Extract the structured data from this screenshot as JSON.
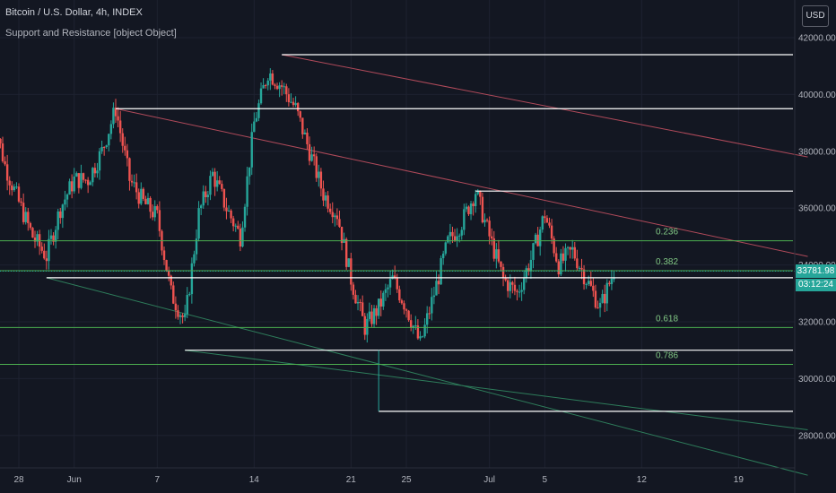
{
  "header": {
    "title": "Bitcoin / U.S. Dollar, 4h, INDEX",
    "indicator": "Support and Resistance [object Object]",
    "currency_button": "USD"
  },
  "last_price": {
    "price": "33781.98",
    "countdown": "03:12:24",
    "color": "#26a69a"
  },
  "colors": {
    "background": "#131722",
    "up": "#26a69a",
    "down": "#ef5350",
    "fib": "#4caf50",
    "support": "#ffffff",
    "trend_down": "#b04a5a",
    "trend_up": "#2e7d5b",
    "grid": "#1e2230",
    "text": "#b2b5be"
  },
  "chart_data": {
    "type": "candlestick",
    "title": "Bitcoin / U.S. Dollar, 4h, INDEX",
    "x_axis": {
      "ticks": [
        "28",
        "Jun",
        "7",
        "14",
        "21",
        "25",
        "Jul",
        "5",
        "12",
        "19"
      ]
    },
    "y_axis": {
      "ticks": [
        "42000.00",
        "40000.00",
        "38000.00",
        "36000.00",
        "34000.00",
        "32000.00",
        "30000.00",
        "28000.00"
      ],
      "range": [
        27300,
        42600
      ]
    },
    "close_path": [
      [
        "May 26",
        39500
      ],
      [
        "May 27",
        37500
      ],
      [
        "May 28",
        36200
      ],
      [
        "May 29",
        35000
      ],
      [
        "May 30",
        34300
      ],
      [
        "May 31",
        36000
      ],
      [
        "Jun 1",
        37000
      ],
      [
        "Jun 2",
        37000
      ],
      [
        "Jun 3",
        38000
      ],
      [
        "Jun 4",
        39500
      ],
      [
        "Jun 5",
        37000
      ],
      [
        "Jun 6",
        36200
      ],
      [
        "Jun 7",
        35700
      ],
      [
        "Jun 8",
        33000
      ],
      [
        "Jun 9",
        32000
      ],
      [
        "Jun 10",
        35800
      ],
      [
        "Jun 11",
        37200
      ],
      [
        "Jun 12",
        36000
      ],
      [
        "Jun 13",
        35000
      ],
      [
        "Jun 14",
        39000
      ],
      [
        "Jun 15",
        40800
      ],
      [
        "Jun 16",
        40300
      ],
      [
        "Jun 17",
        39500
      ],
      [
        "Jun 18",
        38000
      ],
      [
        "Jun 19",
        36500
      ],
      [
        "Jun 20",
        35800
      ],
      [
        "Jun 21",
        33500
      ],
      [
        "Jun 22",
        31800
      ],
      [
        "Jun 23",
        32500
      ],
      [
        "Jun 24",
        33500
      ],
      [
        "Jun 25",
        32500
      ],
      [
        "Jun 26",
        31200
      ],
      [
        "Jun 27",
        33000
      ],
      [
        "Jun 28",
        34800
      ],
      [
        "Jun 29",
        35500
      ],
      [
        "Jun 30",
        36600
      ],
      [
        "Jul 1",
        35000
      ],
      [
        "Jul 2",
        33500
      ],
      [
        "Jul 3",
        33000
      ],
      [
        "Jul 4",
        34200
      ],
      [
        "Jul 5",
        35800
      ],
      [
        "Jul 6",
        34000
      ],
      [
        "Jul 7",
        34500
      ],
      [
        "Jul 8",
        33500
      ],
      [
        "Jul 9",
        32500
      ],
      [
        "Jul 10",
        33781.98
      ]
    ],
    "horizontal_levels": [
      {
        "kind": "resistance",
        "price": 41400,
        "from": "Jun 16"
      },
      {
        "kind": "resistance",
        "price": 39500,
        "from": "Jun 4"
      },
      {
        "kind": "resistance",
        "price": 36600,
        "from": "Jun 30"
      },
      {
        "kind": "support",
        "price": 33550,
        "from": "May 30"
      },
      {
        "kind": "support",
        "price": 31000,
        "from": "Jun 9"
      },
      {
        "kind": "support",
        "price": 28850,
        "from": "Jun 23"
      }
    ],
    "fib_levels": [
      {
        "label": "0.236",
        "price": 34850
      },
      {
        "label": "0.382",
        "price": 33800
      },
      {
        "label": "0.618",
        "price": 31800
      },
      {
        "label": "0.786",
        "price": 30500
      }
    ],
    "trend_lines": [
      {
        "kind": "down",
        "from": [
          "Jun 16",
          41400
        ],
        "to": [
          "Jul 24",
          37800
        ]
      },
      {
        "kind": "down",
        "from": [
          "Jun 4",
          39500
        ],
        "to": [
          "Jul 24",
          34300
        ]
      },
      {
        "kind": "up",
        "from": [
          "May 30",
          33550
        ],
        "to": [
          "Jul 24",
          26600
        ]
      },
      {
        "kind": "up",
        "from": [
          "Jun 9",
          31000
        ],
        "to": [
          "Jul 24",
          28200
        ]
      }
    ]
  }
}
